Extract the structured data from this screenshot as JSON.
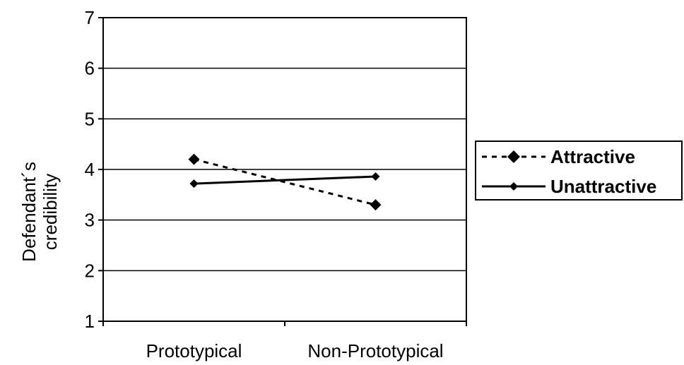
{
  "chart_data": {
    "type": "line",
    "categories": [
      "Prototypical",
      "Non-Prototypical"
    ],
    "series": [
      {
        "name": "Attractive",
        "values": [
          4.2,
          3.3
        ],
        "line_style": "dashed",
        "marker": "diamond",
        "color": "#000000"
      },
      {
        "name": "Unattractive",
        "values": [
          3.72,
          3.86
        ],
        "line_style": "solid",
        "marker": "diamond",
        "color": "#000000"
      }
    ],
    "title": "",
    "xlabel": "",
    "ylabel": "Defendant´s credibility",
    "ylabel_lines": [
      "Defendant´s",
      "credibility"
    ],
    "ylim": [
      1,
      7
    ],
    "yticks": [
      "1",
      "2",
      "3",
      "4",
      "5",
      "6",
      "7"
    ],
    "grid": "horizontal",
    "legend_position": "right"
  }
}
